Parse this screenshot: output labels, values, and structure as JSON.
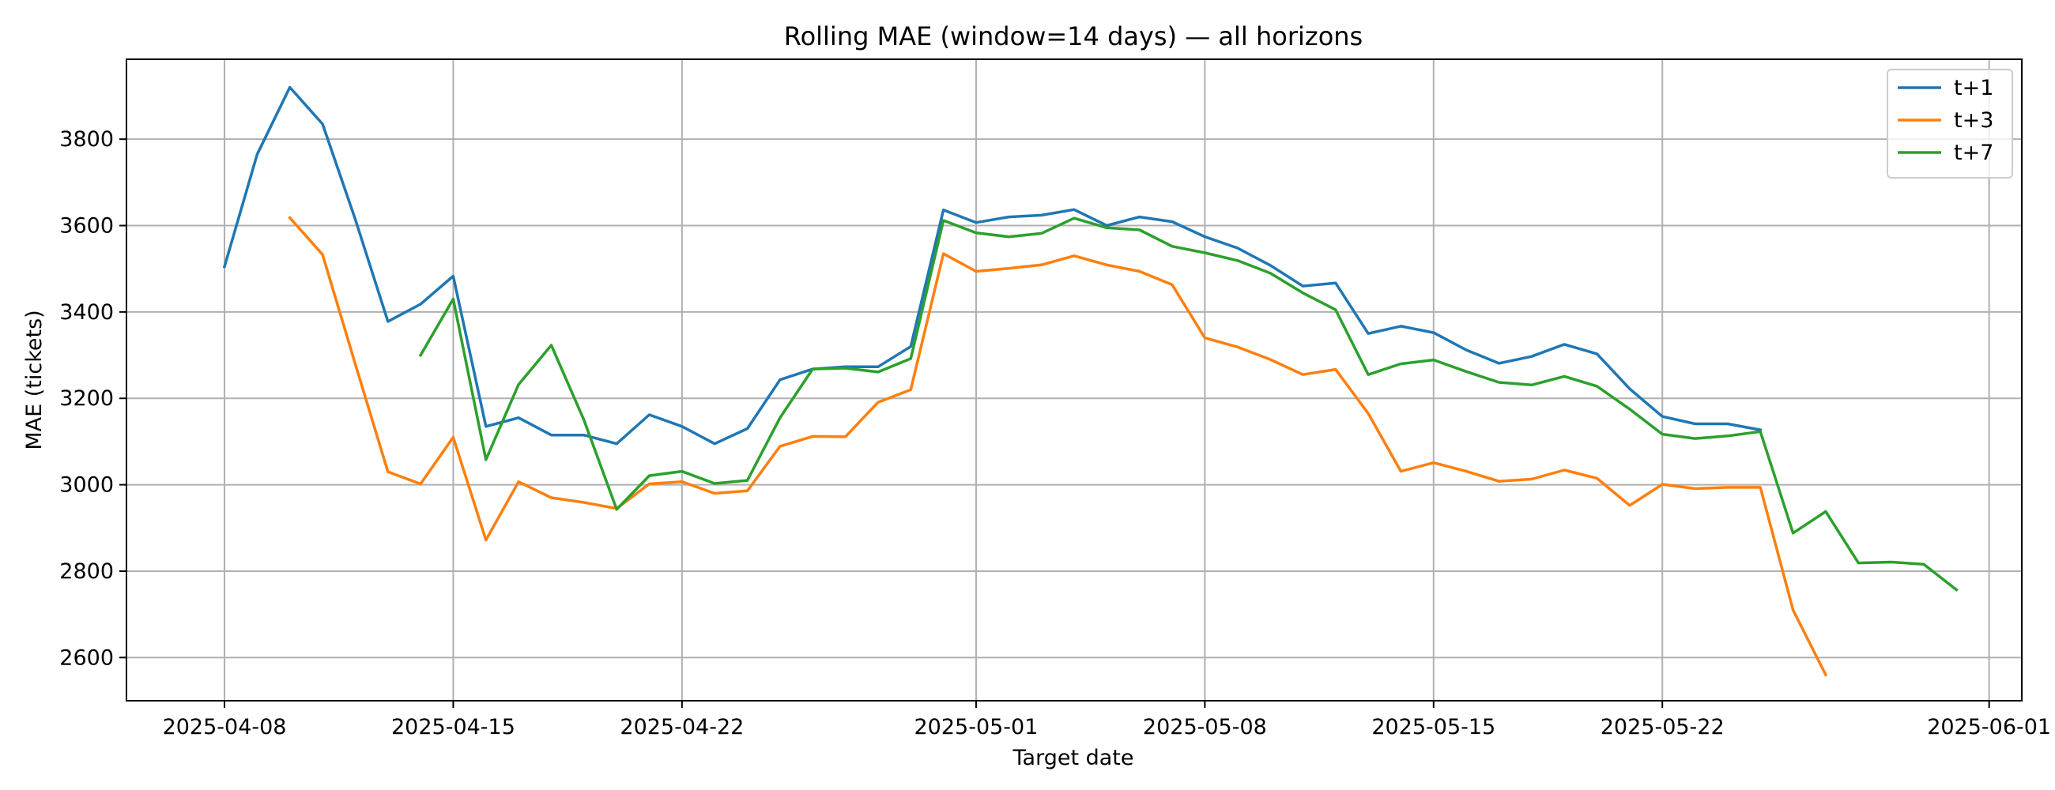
{
  "chart_data": {
    "type": "line",
    "title": "Rolling MAE (window=14 days) — all horizons",
    "xlabel": "Target date",
    "ylabel": "MAE (tickets)",
    "x_start": "2025-04-08",
    "xlim": [
      "2025-04-05",
      "2025-06-02"
    ],
    "ylim": [
      2500,
      3985
    ],
    "grid": true,
    "legend_position": "top-right",
    "x_ticks": [
      "2025-04-08",
      "2025-04-15",
      "2025-04-22",
      "2025-05-01",
      "2025-05-08",
      "2025-05-15",
      "2025-05-22",
      "2025-06-01"
    ],
    "y_ticks": [
      2600,
      2800,
      3000,
      3200,
      3400,
      3600,
      3800
    ],
    "series": [
      {
        "name": "t+1",
        "color": "#1f77b4",
        "points": [
          [
            "2025-04-08",
            3505
          ],
          [
            "2025-04-09",
            3765
          ],
          [
            "2025-04-10",
            3920
          ],
          [
            "2025-04-11",
            3835
          ],
          [
            "2025-04-12",
            3615
          ],
          [
            "2025-04-13",
            3378
          ],
          [
            "2025-04-14",
            3418
          ],
          [
            "2025-04-15",
            3483
          ],
          [
            "2025-04-16",
            3135
          ],
          [
            "2025-04-17",
            3155
          ],
          [
            "2025-04-18",
            3115
          ],
          [
            "2025-04-19",
            3115
          ],
          [
            "2025-04-20",
            3095
          ],
          [
            "2025-04-21",
            3162
          ],
          [
            "2025-04-22",
            3135
          ],
          [
            "2025-04-23",
            3095
          ],
          [
            "2025-04-24",
            3130
          ],
          [
            "2025-04-25",
            3243
          ],
          [
            "2025-04-26",
            3268
          ],
          [
            "2025-04-27",
            3273
          ],
          [
            "2025-04-28",
            3273
          ],
          [
            "2025-04-29",
            3320
          ],
          [
            "2025-04-30",
            3636
          ],
          [
            "2025-05-01",
            3607
          ],
          [
            "2025-05-02",
            3620
          ],
          [
            "2025-05-03",
            3624
          ],
          [
            "2025-05-04",
            3637
          ],
          [
            "2025-05-05",
            3600
          ],
          [
            "2025-05-06",
            3620
          ],
          [
            "2025-05-07",
            3609
          ],
          [
            "2025-05-08",
            3574
          ],
          [
            "2025-05-09",
            3548
          ],
          [
            "2025-05-10",
            3508
          ],
          [
            "2025-05-11",
            3460
          ],
          [
            "2025-05-12",
            3467
          ],
          [
            "2025-05-13",
            3350
          ],
          [
            "2025-05-14",
            3367
          ],
          [
            "2025-05-15",
            3352
          ],
          [
            "2025-05-16",
            3312
          ],
          [
            "2025-05-17",
            3281
          ],
          [
            "2025-05-18",
            3297
          ],
          [
            "2025-05-19",
            3325
          ],
          [
            "2025-05-20",
            3303
          ],
          [
            "2025-05-21",
            3222
          ],
          [
            "2025-05-22",
            3158
          ],
          [
            "2025-05-23",
            3141
          ],
          [
            "2025-05-24",
            3141
          ],
          [
            "2025-05-25",
            3127
          ]
        ]
      },
      {
        "name": "t+3",
        "color": "#ff7f0e",
        "points": [
          [
            "2025-04-10",
            3618
          ],
          [
            "2025-04-11",
            3533
          ],
          [
            "2025-04-12",
            3280
          ],
          [
            "2025-04-13",
            3030
          ],
          [
            "2025-04-14",
            3002
          ],
          [
            "2025-04-15",
            3110
          ],
          [
            "2025-04-16",
            2872
          ],
          [
            "2025-04-17",
            3007
          ],
          [
            "2025-04-18",
            2970
          ],
          [
            "2025-04-19",
            2959
          ],
          [
            "2025-04-20",
            2945
          ],
          [
            "2025-04-21",
            3002
          ],
          [
            "2025-04-22",
            3007
          ],
          [
            "2025-04-23",
            2980
          ],
          [
            "2025-04-24",
            2986
          ],
          [
            "2025-04-25",
            3089
          ],
          [
            "2025-04-26",
            3112
          ],
          [
            "2025-04-27",
            3111
          ],
          [
            "2025-04-28",
            3191
          ],
          [
            "2025-04-29",
            3220
          ],
          [
            "2025-04-30",
            3535
          ],
          [
            "2025-05-01",
            3494
          ],
          [
            "2025-05-02",
            3501
          ],
          [
            "2025-05-03",
            3509
          ],
          [
            "2025-05-04",
            3530
          ],
          [
            "2025-05-05",
            3509
          ],
          [
            "2025-05-06",
            3494
          ],
          [
            "2025-05-07",
            3463
          ],
          [
            "2025-05-08",
            3340
          ],
          [
            "2025-05-09",
            3319
          ],
          [
            "2025-05-10",
            3290
          ],
          [
            "2025-05-11",
            3255
          ],
          [
            "2025-05-12",
            3267
          ],
          [
            "2025-05-13",
            3165
          ],
          [
            "2025-05-14",
            3031
          ],
          [
            "2025-05-15",
            3051
          ],
          [
            "2025-05-16",
            3031
          ],
          [
            "2025-05-17",
            3008
          ],
          [
            "2025-05-18",
            3013
          ],
          [
            "2025-05-19",
            3034
          ],
          [
            "2025-05-20",
            3015
          ],
          [
            "2025-05-21",
            2952
          ],
          [
            "2025-05-22",
            3001
          ],
          [
            "2025-05-23",
            2991
          ],
          [
            "2025-05-24",
            2994
          ],
          [
            "2025-05-25",
            2994
          ],
          [
            "2025-05-26",
            2710
          ],
          [
            "2025-05-27",
            2560
          ]
        ]
      },
      {
        "name": "t+7",
        "color": "#2ca02c",
        "points": [
          [
            "2025-04-14",
            3300
          ],
          [
            "2025-04-15",
            3430
          ],
          [
            "2025-04-16",
            3058
          ],
          [
            "2025-04-17",
            3232
          ],
          [
            "2025-04-18",
            3323
          ],
          [
            "2025-04-19",
            3150
          ],
          [
            "2025-04-20",
            2943
          ],
          [
            "2025-04-21",
            3021
          ],
          [
            "2025-04-22",
            3031
          ],
          [
            "2025-04-23",
            3003
          ],
          [
            "2025-04-24",
            3010
          ],
          [
            "2025-04-25",
            3155
          ],
          [
            "2025-04-26",
            3268
          ],
          [
            "2025-04-27",
            3270
          ],
          [
            "2025-04-28",
            3261
          ],
          [
            "2025-04-29",
            3292
          ],
          [
            "2025-04-30",
            3612
          ],
          [
            "2025-05-01",
            3583
          ],
          [
            "2025-05-02",
            3574
          ],
          [
            "2025-05-03",
            3582
          ],
          [
            "2025-05-04",
            3617
          ],
          [
            "2025-05-05",
            3595
          ],
          [
            "2025-05-06",
            3590
          ],
          [
            "2025-05-07",
            3552
          ],
          [
            "2025-05-08",
            3537
          ],
          [
            "2025-05-09",
            3519
          ],
          [
            "2025-05-10",
            3490
          ],
          [
            "2025-05-11",
            3444
          ],
          [
            "2025-05-12",
            3405
          ],
          [
            "2025-05-13",
            3255
          ],
          [
            "2025-05-14",
            3280
          ],
          [
            "2025-05-15",
            3289
          ],
          [
            "2025-05-16",
            3262
          ],
          [
            "2025-05-17",
            3237
          ],
          [
            "2025-05-18",
            3231
          ],
          [
            "2025-05-19",
            3251
          ],
          [
            "2025-05-20",
            3228
          ],
          [
            "2025-05-21",
            3175
          ],
          [
            "2025-05-22",
            3117
          ],
          [
            "2025-05-23",
            3107
          ],
          [
            "2025-05-24",
            3113
          ],
          [
            "2025-05-25",
            3123
          ],
          [
            "2025-05-26",
            2888
          ],
          [
            "2025-05-27",
            2938
          ],
          [
            "2025-05-28",
            2819
          ],
          [
            "2025-05-29",
            2821
          ],
          [
            "2025-05-30",
            2816
          ],
          [
            "2025-05-31",
            2757
          ]
        ]
      }
    ]
  }
}
